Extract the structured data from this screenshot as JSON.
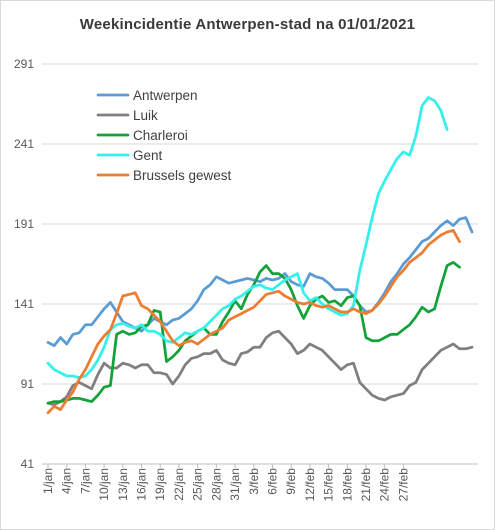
{
  "chart_data": {
    "type": "line",
    "title": "Weekincidentie  Antwerpen-stad na 01/01/2021",
    "xlabel": "",
    "ylabel": "",
    "ylim": [
      41,
      291
    ],
    "yticks": [
      41,
      91,
      141,
      191,
      241,
      291
    ],
    "xtick_labels": [
      "1/jan",
      "4/jan",
      "7/jan",
      "10/jan",
      "13/jan",
      "16/jan",
      "19/jan",
      "22/jan",
      "25/jan",
      "28/jan",
      "31/jan",
      "3/feb",
      "6/feb",
      "9/feb",
      "12/feb",
      "15/feb",
      "18/feb",
      "21/feb",
      "24/feb",
      "27/feb"
    ],
    "grid": "horizontal",
    "legend_position": "top-left",
    "series": [
      {
        "name": "Antwerpen",
        "color": "#5B9BD5",
        "values": [
          117,
          115,
          120,
          116,
          122,
          123,
          128,
          128,
          133,
          138,
          142,
          136,
          130,
          128,
          126,
          124,
          128,
          132,
          130,
          128,
          131,
          132,
          135,
          138,
          143,
          150,
          153,
          158,
          156,
          154,
          155,
          156,
          157,
          156,
          155,
          157,
          156,
          157,
          160,
          155,
          153,
          152,
          160,
          158,
          157,
          154,
          150,
          150,
          150,
          146,
          140,
          136,
          137,
          142,
          148,
          155,
          160,
          166,
          170,
          175,
          180,
          182,
          186,
          190,
          193,
          190,
          194,
          195,
          186
        ]
      },
      {
        "name": "Luik",
        "color": "#7F7F7F",
        "values": [
          79,
          78,
          80,
          83,
          90,
          92,
          90,
          88,
          97,
          104,
          101,
          101,
          104,
          103,
          101,
          103,
          103,
          98,
          98,
          97,
          91,
          96,
          103,
          107,
          108,
          110,
          110,
          112,
          106,
          104,
          103,
          110,
          111,
          114,
          114,
          120,
          123,
          124,
          120,
          116,
          110,
          112,
          116,
          114,
          112,
          108,
          104,
          100,
          103,
          104,
          92,
          88,
          84,
          82,
          81,
          83,
          84,
          85,
          90,
          92,
          100,
          104,
          108,
          112,
          114,
          116,
          113,
          113,
          114
        ]
      },
      {
        "name": "Charleroi",
        "color": "#13A23A",
        "values": [
          79,
          80,
          80,
          81,
          82,
          82,
          81,
          80,
          84,
          89,
          90,
          122,
          124,
          122,
          123,
          127,
          128,
          137,
          136,
          105,
          108,
          112,
          118,
          121,
          124,
          126,
          122,
          122,
          130,
          136,
          143,
          138,
          147,
          153,
          161,
          165,
          160,
          160,
          157,
          150,
          140,
          132,
          140,
          144,
          146,
          142,
          143,
          140,
          145,
          146,
          140,
          120,
          118,
          118,
          120,
          122,
          122,
          125,
          128,
          133,
          139,
          136,
          138,
          152,
          165,
          167,
          164
        ]
      },
      {
        "name": "Gent",
        "color": "#33F0EB",
        "values": [
          104,
          100,
          98,
          96,
          96,
          95,
          96,
          100,
          106,
          114,
          125,
          128,
          129,
          127,
          126,
          128,
          124,
          124,
          122,
          118,
          117,
          120,
          123,
          122,
          124,
          126,
          130,
          134,
          138,
          140,
          144,
          146,
          149,
          152,
          153,
          151,
          150,
          153,
          156,
          158,
          160,
          148,
          143,
          145,
          141,
          138,
          136,
          134,
          135,
          140,
          162,
          178,
          195,
          210,
          218,
          225,
          232,
          236,
          234,
          246,
          265,
          270,
          268,
          262,
          250
        ]
      },
      {
        "name": "Brussels gewest",
        "color": "#ED7D31",
        "values": [
          73,
          77,
          75,
          81,
          86,
          94,
          100,
          108,
          116,
          121,
          125,
          135,
          146,
          147,
          148,
          140,
          138,
          134,
          130,
          124,
          118,
          115,
          117,
          118,
          116,
          119,
          122,
          124,
          126,
          131,
          133,
          135,
          137,
          139,
          143,
          147,
          148,
          149,
          146,
          144,
          142,
          141,
          142,
          140,
          139,
          140,
          138,
          136,
          136,
          138,
          136,
          135,
          137,
          141,
          146,
          152,
          158,
          162,
          167,
          170,
          173,
          178,
          181,
          184,
          186,
          187,
          180
        ]
      }
    ]
  }
}
